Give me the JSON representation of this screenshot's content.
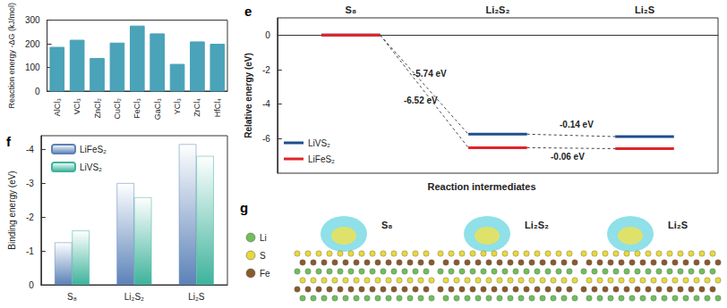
{
  "chart_data": [
    {
      "type": "bar",
      "y_label": "Reaction energy -ΔG (kJ/mol)",
      "categories": [
        "AlCl₃",
        "VCl₃",
        "ZnCl₂",
        "CuCl₂",
        "FeCl₃",
        "GaCl₃",
        "YCl₃",
        "ZrCl₄",
        "HfCl₄"
      ],
      "values": [
        185,
        215,
        138,
        203,
        275,
        242,
        113,
        208,
        198
      ],
      "color": "#4aa3b8",
      "ylim": [
        0,
        300
      ],
      "yticks": [
        0,
        100,
        200,
        300
      ]
    },
    {
      "type": "step",
      "title": "e",
      "y_label": "Relative energy (eV)",
      "x_label": "Reaction intermediates",
      "categories": [
        "S₈",
        "Li₂S₂",
        "Li₂S"
      ],
      "series": [
        {
          "name": "LiVS₂",
          "color": "#1f4e8c",
          "values": [
            0,
            -5.74,
            -5.88
          ],
          "step_labels": [
            "-5.74 eV",
            "-0.14 eV"
          ]
        },
        {
          "name": "LiFeS₂",
          "color": "#e0242a",
          "values": [
            0,
            -6.52,
            -6.58
          ],
          "step_labels": [
            "-6.52 eV",
            "-0.06 eV"
          ]
        }
      ],
      "ylim": [
        -8,
        1
      ],
      "yticks": [
        -6,
        -4,
        -2,
        0
      ],
      "legend": "bottom-left"
    },
    {
      "type": "bar",
      "title": "f",
      "y_label": "Binding energy (eV)",
      "categories": [
        "S₈",
        "Li₂S₂",
        "Li₂S"
      ],
      "series": [
        {
          "name": "LiFeS₂",
          "color": "#5b82b8",
          "values": [
            -1.25,
            -3.0,
            -4.15
          ]
        },
        {
          "name": "LiVS₂",
          "color": "#3db39b",
          "values": [
            -1.6,
            -2.58,
            -3.8
          ]
        }
      ],
      "ylim": [
        -4.4,
        0
      ],
      "yticks": [
        -4,
        -3,
        -2,
        -1,
        0
      ],
      "legend": "top-left"
    }
  ],
  "panel_g": {
    "title": "g",
    "structures": [
      "S₈",
      "Li₂S₂",
      "Li₂S"
    ],
    "legend": [
      {
        "name": "Li",
        "color": "#6fbf5a"
      },
      {
        "name": "S",
        "color": "#e8d83a"
      },
      {
        "name": "Fe",
        "color": "#8a5a2b"
      }
    ]
  }
}
